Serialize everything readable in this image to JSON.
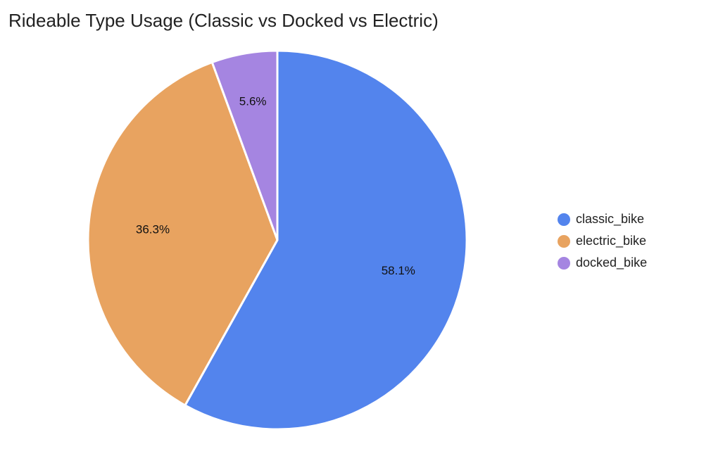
{
  "chart_data": {
    "type": "pie",
    "title": "Rideable Type Usage (Classic vs Docked vs Electric)",
    "slices": [
      {
        "name": "classic_bike",
        "value": 58.1,
        "label": "58.1%",
        "color": "#5384ED"
      },
      {
        "name": "electric_bike",
        "value": 36.3,
        "label": "36.3%",
        "color": "#E8A360"
      },
      {
        "name": "docked_bike",
        "value": 5.6,
        "label": "5.6%",
        "color": "#A585E1"
      }
    ],
    "legend": [
      {
        "label": "classic_bike",
        "color": "#5384ED"
      },
      {
        "label": "electric_bike",
        "color": "#E8A360"
      },
      {
        "label": "docked_bike",
        "color": "#A585E1"
      }
    ],
    "legend_position": "right",
    "start_angle": "12 o'clock",
    "direction": "clockwise"
  }
}
